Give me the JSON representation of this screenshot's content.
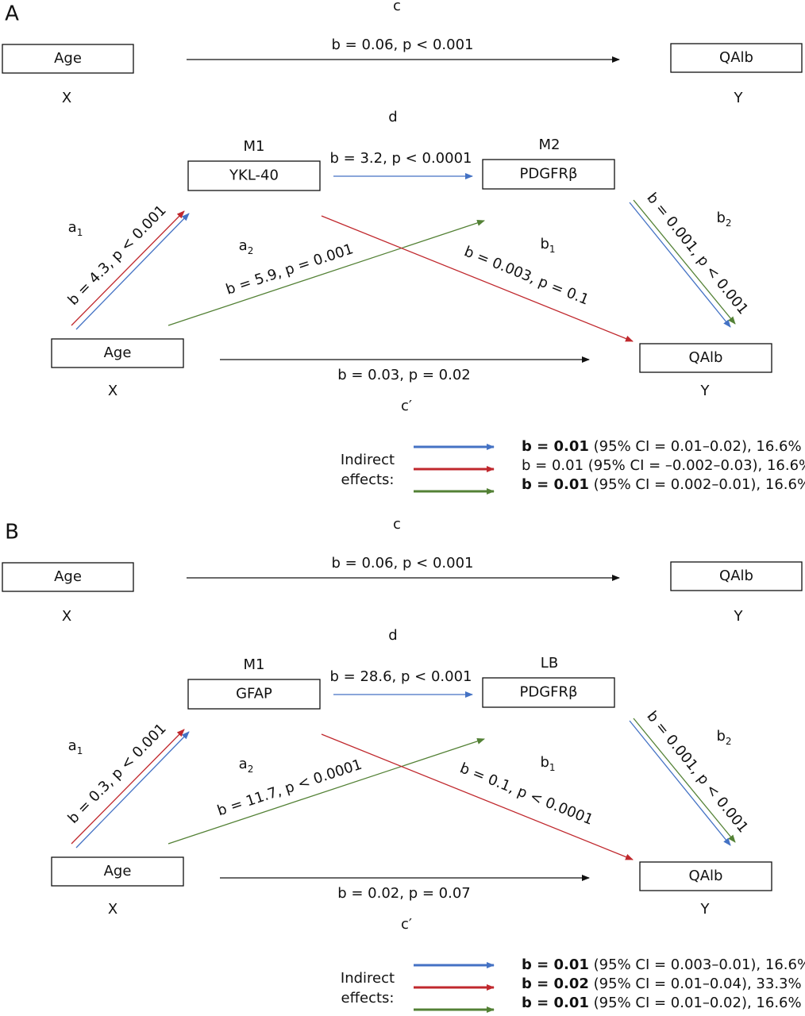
{
  "panels": [
    {
      "letter": "A",
      "c": "c",
      "total_effect": "b = 0.06, p < 0.001",
      "x_box": "Age",
      "x_role": "X",
      "y_box": "QAlb",
      "y_role": "Y",
      "d": "d",
      "m1_role": "M1",
      "m1_box": "YKL-40",
      "m2_role": "M2",
      "m2_box": "PDGFRβ",
      "m1_m2_effect": "b = 3.2, p < 0.0001",
      "a1": {
        "base": "a",
        "sub": "1"
      },
      "a1_effect": "b = 4.3, p < 0.001",
      "a2": {
        "base": "a",
        "sub": "2"
      },
      "a2_effect": "b = 5.9, p = 0.001",
      "b1": {
        "base": "b",
        "sub": "1"
      },
      "b1_effect": "b = 0.003, p = 0.1",
      "b2": {
        "base": "b",
        "sub": "2"
      },
      "b2_effect": "b = 0.001, p < 0.001",
      "x2_box": "Age",
      "x2_role": "X",
      "y2_box": "QAlb",
      "y2_role": "Y",
      "direct_effect": "b = 0.03, p = 0.02",
      "c_prime": "c′",
      "legend": {
        "title": [
          "Indirect",
          "effects:"
        ],
        "items": [
          {
            "color": "#4472c4",
            "effect": "b = 0.01",
            "detail": " (95% CI = 0.01–0.02), 16.6%",
            "bold": true
          },
          {
            "color": "#c0282d",
            "effect": "b = 0.01",
            "detail": " (95% CI = –0.002–0.03), 16.6%",
            "bold": false
          },
          {
            "color": "#538135",
            "effect": "b = 0.01",
            "detail": " (95% CI = 0.002–0.01), 16.6%",
            "bold": true
          }
        ]
      }
    },
    {
      "letter": "B",
      "c": "c",
      "total_effect": "b = 0.06, p < 0.001",
      "x_box": "Age",
      "x_role": "X",
      "y_box": "QAlb",
      "y_role": "Y",
      "d": "d",
      "m1_role": "M1",
      "m1_box": "GFAP",
      "m2_role": "LB",
      "m2_box": "PDGFRβ",
      "m1_m2_effect": "b = 28.6, p < 0.001",
      "a1": {
        "base": "a",
        "sub": "1"
      },
      "a1_effect": "b = 0.3, p < 0.001",
      "a2": {
        "base": "a",
        "sub": "2"
      },
      "a2_effect": "b = 11.7, p < 0.0001",
      "b1": {
        "base": "b",
        "sub": "1"
      },
      "b1_effect": "b = 0.1, p < 0.0001",
      "b2": {
        "base": "b",
        "sub": "2"
      },
      "b2_effect": "b = 0.001, p < 0.001",
      "x2_box": "Age",
      "x2_role": "X",
      "y2_box": "QAlb",
      "y2_role": "Y",
      "direct_effect": "b = 0.02, p = 0.07",
      "c_prime": "c′",
      "legend": {
        "title": [
          "Indirect",
          "effects:"
        ],
        "items": [
          {
            "color": "#4472c4",
            "effect": "b = 0.01",
            "detail": " (95% CI = 0.003–0.01), 16.6%",
            "bold": true
          },
          {
            "color": "#c0282d",
            "effect": "b = 0.02",
            "detail": " (95% CI = 0.01–0.04), 33.3%",
            "bold": true
          },
          {
            "color": "#538135",
            "effect": "b = 0.01",
            "detail": " (95% CI = 0.01–0.02), 16.6%",
            "bold": true
          }
        ]
      }
    }
  ]
}
